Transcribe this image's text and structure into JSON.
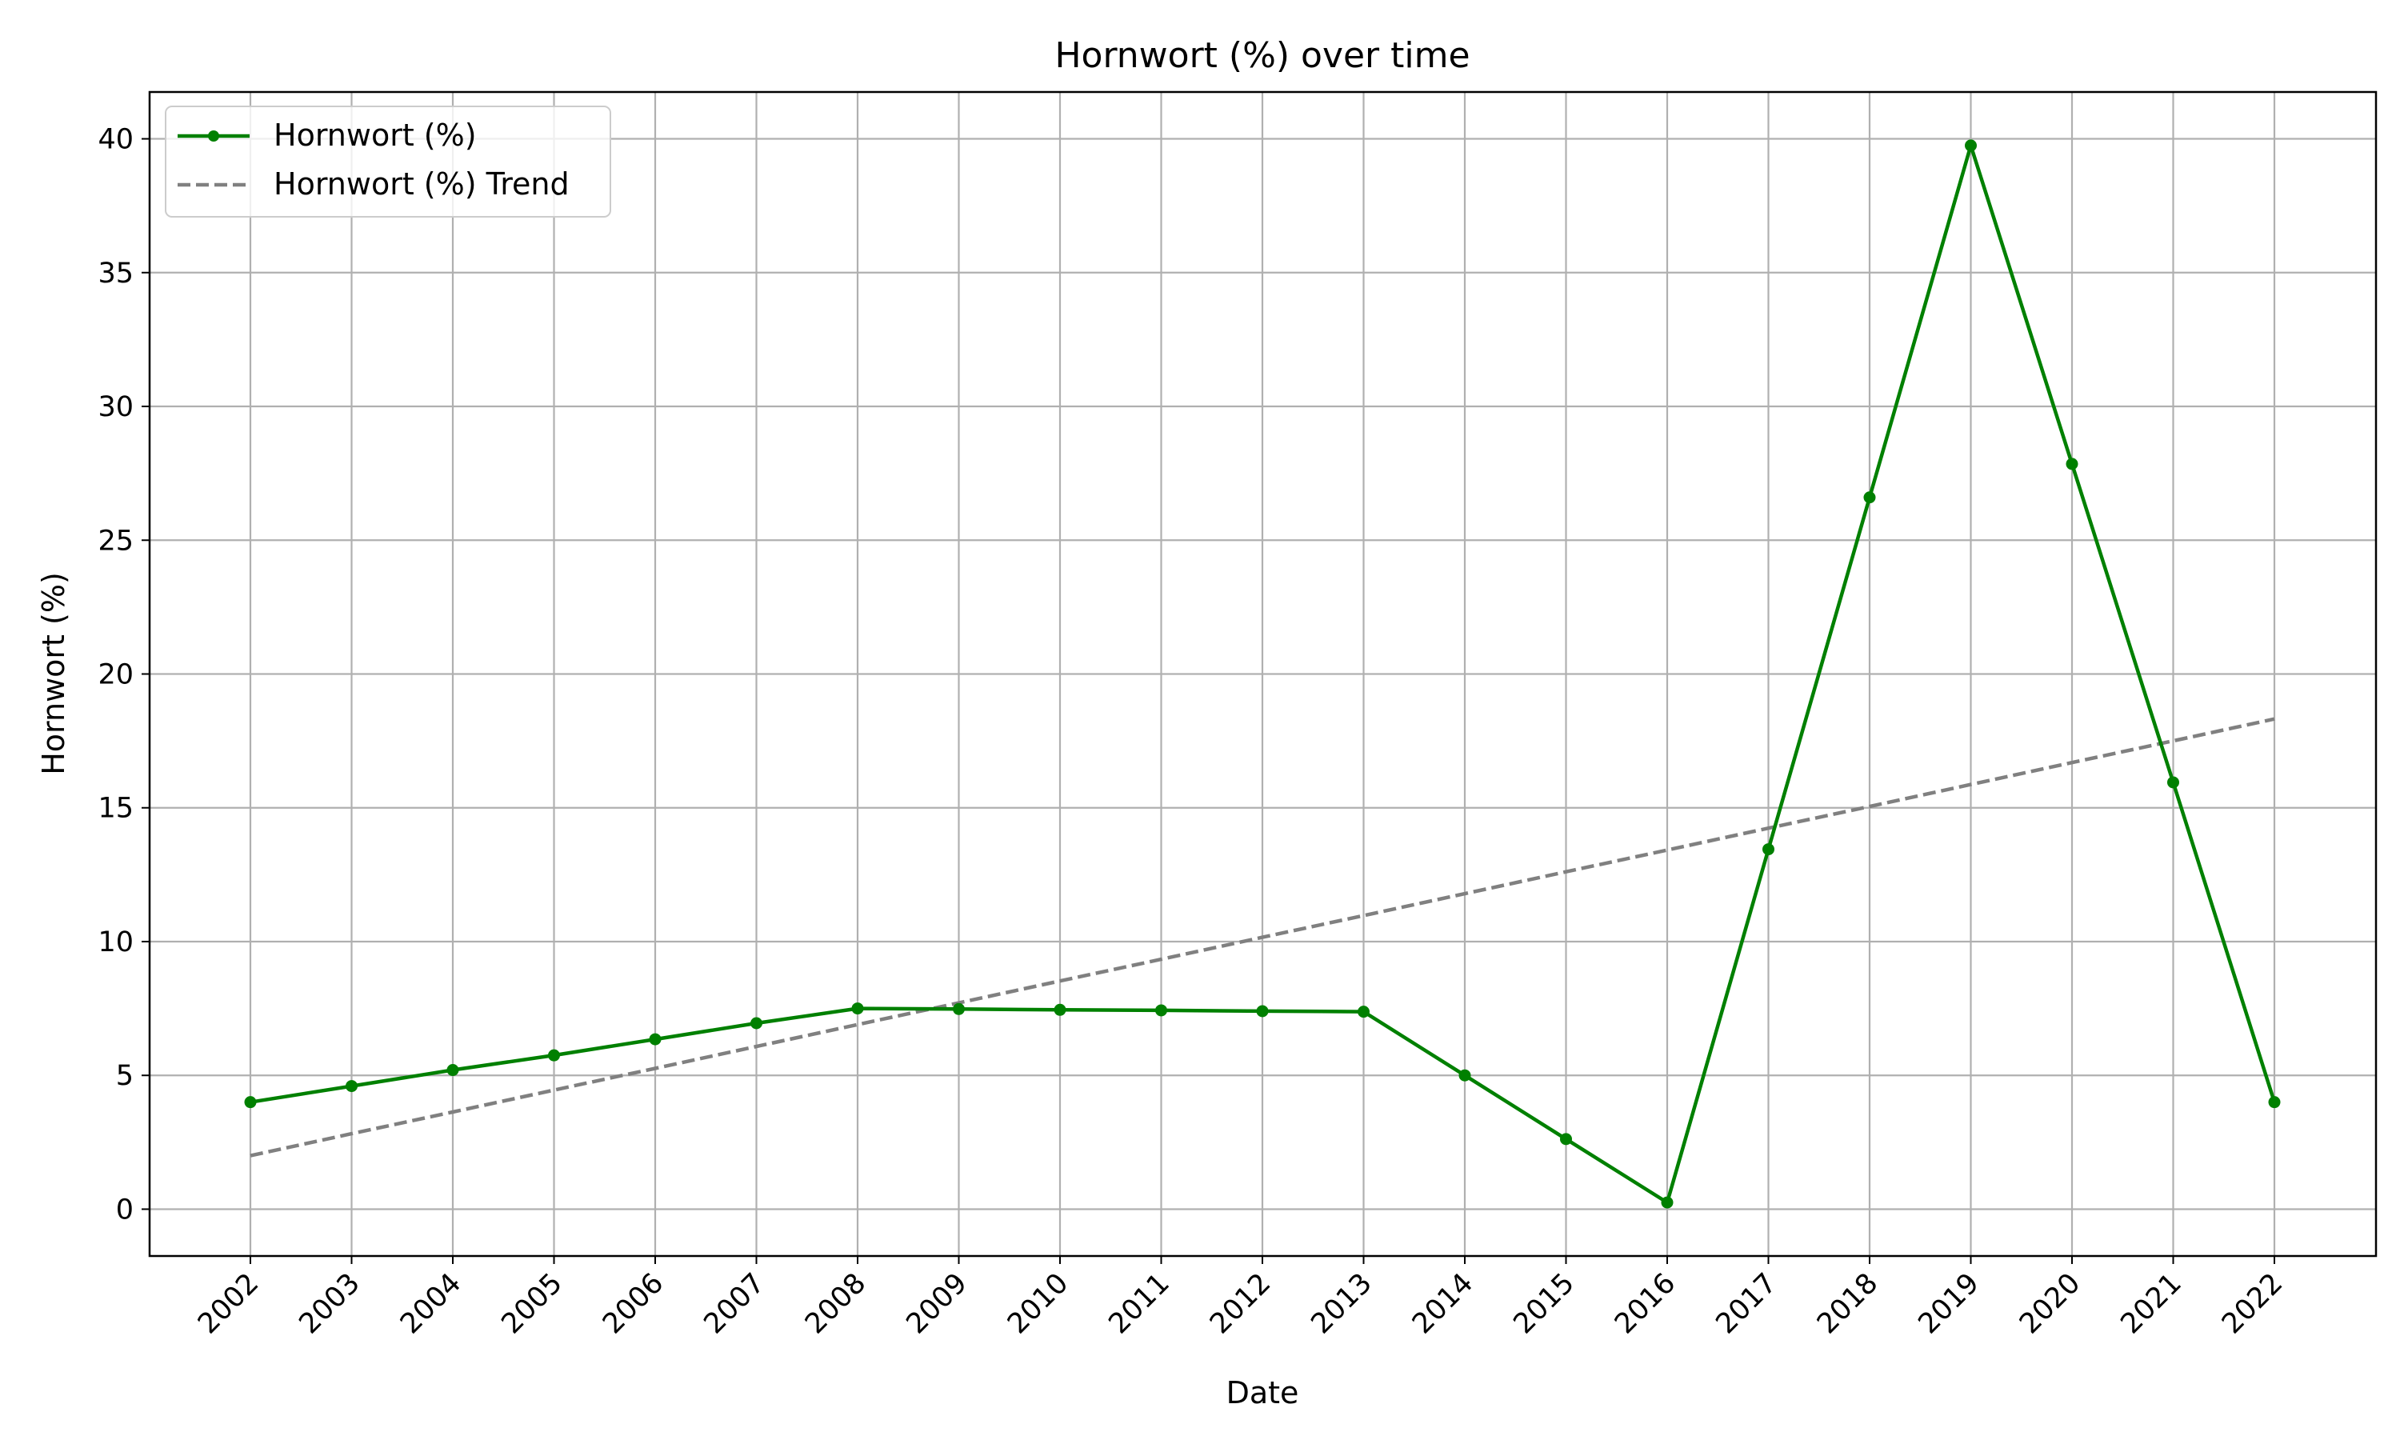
{
  "chart_data": {
    "type": "line",
    "title": "Hornwort (%) over time",
    "xlabel": "Date",
    "ylabel": "Hornwort (%)",
    "categories": [
      "2002",
      "2003",
      "2004",
      "2005",
      "2006",
      "2007",
      "2008",
      "2009",
      "2010",
      "2011",
      "2012",
      "2013",
      "2014",
      "2015",
      "2016",
      "2017",
      "2018",
      "2019",
      "2020",
      "2021",
      "2022"
    ],
    "series": [
      {
        "name": "Hornwort (%)",
        "color": "#008000",
        "style": "solid",
        "marker": "circle",
        "values": [
          4.0,
          4.6,
          5.2,
          5.75,
          6.35,
          6.95,
          7.5,
          7.48,
          7.45,
          7.43,
          7.4,
          7.38,
          5.0,
          2.62,
          0.25,
          13.45,
          26.6,
          39.75,
          27.85,
          15.95,
          4.0
        ]
      },
      {
        "name": "Hornwort (%) Trend",
        "color": "#808080",
        "style": "dashed",
        "marker": "none",
        "values": [
          2.0,
          2.82,
          3.63,
          4.45,
          5.26,
          6.08,
          6.9,
          7.71,
          8.53,
          9.34,
          10.16,
          10.97,
          11.79,
          12.61,
          13.42,
          14.24,
          15.05,
          15.87,
          16.69,
          17.5,
          18.32
        ]
      }
    ],
    "yticks": [
      0,
      5,
      10,
      15,
      20,
      25,
      30,
      35,
      40
    ],
    "ylim": [
      -1.75,
      41.75
    ],
    "grid": true,
    "legend_position": "top-left"
  }
}
